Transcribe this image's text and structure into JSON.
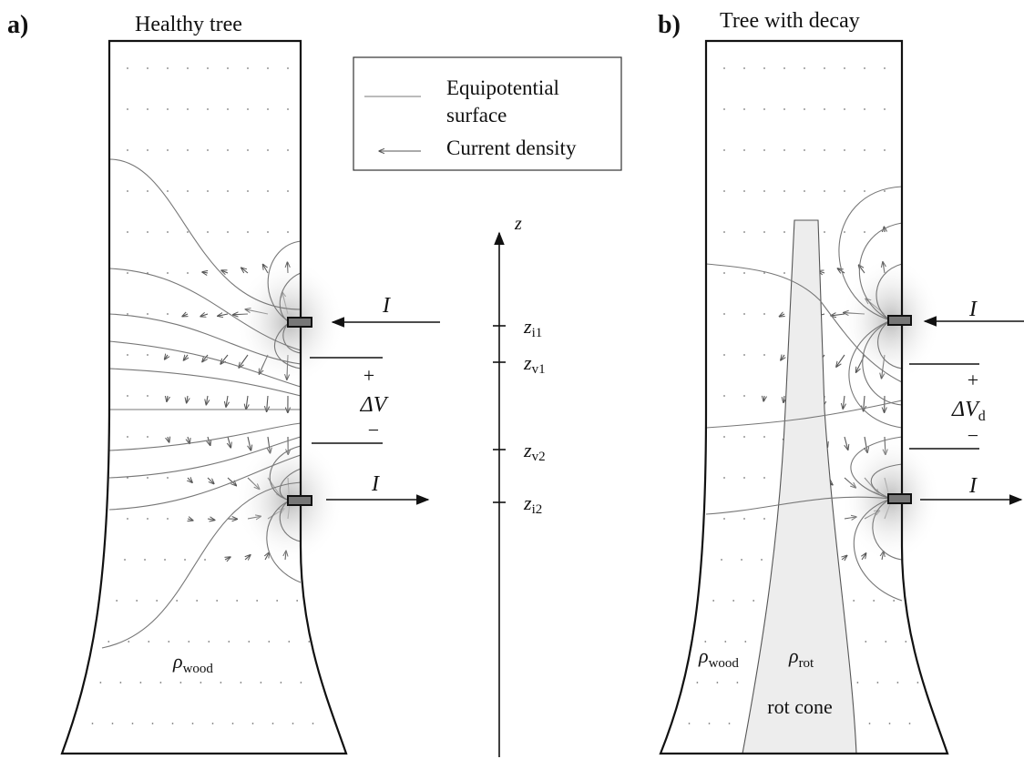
{
  "panel_a": {
    "label": "a)",
    "title": "Healthy tree",
    "current_in": "I",
    "current_out": "I",
    "plus": "+",
    "voltage": {
      "symbol": "ΔV"
    },
    "minus": "−",
    "rho_wood": {
      "symbol": "ρ",
      "sub": "wood"
    }
  },
  "panel_b": {
    "label": "b)",
    "title": "Tree with decay",
    "current_in": "I",
    "current_out": "I",
    "plus": "+",
    "voltage": {
      "symbol": "ΔV",
      "sub": "d"
    },
    "minus": "−",
    "rho_wood": {
      "symbol": "ρ",
      "sub": "wood"
    },
    "rho_rot": {
      "symbol": "ρ",
      "sub": "rot"
    },
    "region": "rot cone"
  },
  "legend": {
    "items": [
      {
        "label": [
          "Equipotential",
          "surface"
        ]
      },
      {
        "label": "Current density"
      }
    ]
  },
  "z_axis": {
    "label": "z",
    "ticks": [
      {
        "symbol": "z",
        "sub": "i1"
      },
      {
        "symbol": "z",
        "sub": "v1"
      },
      {
        "symbol": "z",
        "sub": "v2"
      },
      {
        "symbol": "z",
        "sub": "i2"
      }
    ]
  }
}
